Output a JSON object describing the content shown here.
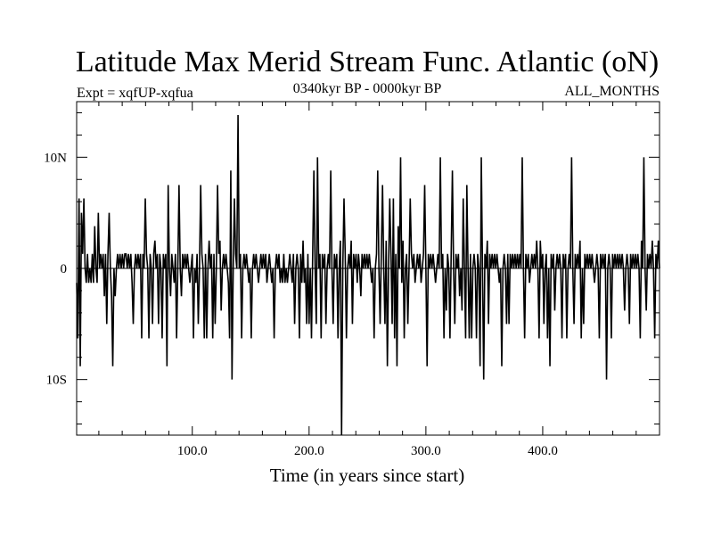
{
  "chart_data": {
    "type": "line",
    "title": "Latitude Max Merid Stream Func. Atlantic (oN)",
    "subtitle_left": "Expt = xqfUP-xqfua",
    "subtitle_center": "0340kyr BP - 0000kyr BP",
    "subtitle_right": "ALL_MONTHS",
    "xlabel": "Time (in years since start)",
    "ylabel": "",
    "xlim": [
      1,
      500
    ],
    "ylim": [
      -15,
      15
    ],
    "grid": false,
    "x_ticks": [
      {
        "value": 100,
        "label": "100.0"
      },
      {
        "value": 200,
        "label": "200.0"
      },
      {
        "value": 300,
        "label": "300.0"
      },
      {
        "value": 400,
        "label": "400.0"
      }
    ],
    "y_ticks": [
      {
        "value": 10,
        "label": "10N"
      },
      {
        "value": 0,
        "label": "0"
      },
      {
        "value": -10,
        "label": "10S"
      }
    ],
    "series": [
      {
        "values": [
          -1.3,
          -6.3,
          6.3,
          -8.8,
          5.0,
          1.3,
          6.3,
          0.0,
          -1.3,
          1.3,
          -1.3,
          0.0,
          -1.3,
          1.3,
          -1.3,
          3.8,
          0.0,
          -1.3,
          5.0,
          0.0,
          1.3,
          0.0,
          1.3,
          -2.5,
          1.3,
          -5.0,
          1.3,
          5.0,
          0.0,
          -2.5,
          -8.8,
          0.0,
          -2.5,
          0.0,
          1.3,
          0.0,
          1.3,
          0.0,
          1.3,
          0.0,
          1.3,
          1.3,
          0.0,
          1.3,
          0.0,
          1.3,
          -1.3,
          -5.0,
          0.0,
          1.3,
          0.0,
          1.3,
          0.0,
          1.3,
          -6.3,
          1.3,
          0.0,
          6.3,
          1.3,
          0.0,
          -6.3,
          1.3,
          0.0,
          -5.0,
          1.3,
          2.5,
          0.0,
          1.3,
          -5.0,
          1.3,
          0.0,
          -6.3,
          1.3,
          0.0,
          1.3,
          -8.8,
          7.5,
          0.0,
          -2.5,
          1.3,
          0.0,
          -1.3,
          1.3,
          -6.3,
          0.0,
          7.5,
          0.0,
          -2.5,
          1.3,
          0.0,
          1.3,
          0.0,
          1.3,
          0.0,
          -1.3,
          0.0,
          1.3,
          -6.3,
          0.0,
          -1.3,
          1.3,
          -5.0,
          0.0,
          7.5,
          1.3,
          0.0,
          -6.3,
          1.3,
          -6.3,
          0.0,
          2.5,
          0.0,
          1.3,
          -6.3,
          1.3,
          -5.0,
          0.0,
          7.5,
          1.3,
          2.5,
          -3.8,
          0.0,
          1.3,
          0.0,
          1.3,
          0.0,
          -1.3,
          -6.3,
          8.8,
          -10.0,
          0.0,
          6.3,
          1.3,
          0.0,
          13.8,
          0.0,
          1.3,
          -6.3,
          0.0,
          1.3,
          0.0,
          1.3,
          0.0,
          -1.3,
          0.0,
          -6.3,
          0.0,
          1.3,
          0.0,
          1.3,
          0.0,
          -1.3,
          0.0,
          1.3,
          0.0,
          1.3,
          0.0,
          1.3,
          -1.3,
          0.0,
          1.3,
          0.0,
          -1.3,
          0.0,
          -6.3,
          0.0,
          1.3,
          0.0,
          1.3,
          -1.3,
          0.0,
          -1.3,
          1.3,
          -1.3,
          0.0,
          -1.3,
          0.0,
          1.3,
          0.0,
          -1.3,
          1.3,
          -5.0,
          0.0,
          1.3,
          0.0,
          -6.3,
          1.3,
          -1.3,
          2.5,
          -1.3,
          0.0,
          -5.0,
          1.3,
          -5.0,
          0.0,
          -6.3,
          1.3,
          8.8,
          0.0,
          -5.0,
          10.0,
          0.0,
          1.3,
          -6.3,
          1.3,
          0.0,
          1.3,
          -5.0,
          0.0,
          1.3,
          0.0,
          8.8,
          0.0,
          -5.0,
          1.3,
          0.0,
          1.3,
          -6.3,
          0.0,
          2.5,
          -15.0,
          0.0,
          6.3,
          1.3,
          -6.3,
          0.0,
          1.3,
          0.0,
          2.5,
          -5.0,
          1.3,
          0.0,
          1.3,
          -1.3,
          1.3,
          0.0,
          -2.5,
          1.3,
          0.0,
          1.3,
          0.0,
          1.3,
          0.0,
          1.3,
          0.0,
          -1.3,
          0.0,
          -6.3,
          0.0,
          1.3,
          8.8,
          0.0,
          -5.0,
          1.3,
          7.5,
          0.0,
          -5.0,
          2.5,
          -8.8,
          0.0,
          6.3,
          1.3,
          -5.0,
          6.3,
          -6.3,
          1.3,
          -8.8,
          3.8,
          0.0,
          10.0,
          -1.3,
          2.5,
          -6.3,
          0.0,
          1.3,
          -5.0,
          0.0,
          6.3,
          1.3,
          0.0,
          1.3,
          -1.3,
          0.0,
          1.3,
          0.0,
          1.3,
          -1.3,
          0.0,
          1.3,
          7.5,
          0.0,
          -8.8,
          1.3,
          0.0,
          1.3,
          0.0,
          1.3,
          0.0,
          -1.3,
          0.0,
          1.3,
          0.0,
          10.0,
          0.0,
          1.3,
          -6.3,
          0.0,
          -3.8,
          1.3,
          0.0,
          -6.3,
          1.3,
          8.8,
          0.0,
          -5.0,
          1.3,
          0.0,
          1.3,
          -2.5,
          0.0,
          -3.8,
          6.3,
          0.0,
          -6.3,
          7.5,
          0.0,
          -6.3,
          1.3,
          -6.3,
          0.0,
          1.3,
          0.0,
          -6.3,
          1.3,
          0.0,
          -8.8,
          10.0,
          0.0,
          -10.0,
          1.3,
          0.0,
          2.5,
          -5.0,
          1.3,
          0.0,
          1.3,
          0.0,
          1.3,
          0.0,
          1.3,
          0.0,
          -1.3,
          0.0,
          -8.8,
          0.0,
          1.3,
          0.0,
          -5.0,
          1.3,
          -5.0,
          1.3,
          0.0,
          1.3,
          0.0,
          1.3,
          0.0,
          1.3,
          0.0,
          1.3,
          0.0,
          10.0,
          0.0,
          -6.3,
          1.3,
          0.0,
          1.3,
          -1.3,
          0.0,
          1.3,
          0.0,
          1.3,
          0.0,
          2.5,
          0.0,
          -6.3,
          2.5,
          0.0,
          1.3,
          -5.0,
          0.0,
          1.3,
          -6.3,
          0.0,
          -8.8,
          1.3,
          0.0,
          1.3,
          -3.8,
          0.0,
          1.3,
          0.0,
          1.3,
          0.0,
          -6.3,
          1.3,
          0.0,
          1.3,
          -6.3,
          0.0,
          1.3,
          0.0,
          10.0,
          0.0,
          -5.0,
          1.3,
          0.0,
          1.3,
          0.0,
          2.5,
          -6.3,
          0.0,
          -5.0,
          1.3,
          0.0,
          1.3,
          0.0,
          1.3,
          0.0,
          1.3,
          0.0,
          -1.3,
          0.0,
          1.3,
          0.0,
          -6.3,
          1.3,
          0.0,
          1.3,
          0.0,
          1.3,
          -10.0,
          0.0,
          1.3,
          0.0,
          -6.3,
          1.3,
          0.0,
          1.3,
          0.0,
          1.3,
          0.0,
          1.3,
          0.0,
          1.3,
          0.0,
          -3.8,
          0.0,
          1.3,
          0.0,
          -5.0,
          1.3,
          0.0,
          1.3,
          0.0,
          1.3,
          0.0,
          1.3,
          0.0,
          -6.3,
          2.5,
          0.0,
          10.0,
          0.0,
          -3.8,
          1.3,
          0.0,
          1.3,
          0.0,
          2.5,
          0.0,
          -6.3,
          1.3,
          0.0,
          2.5,
          0.0
        ]
      }
    ]
  }
}
